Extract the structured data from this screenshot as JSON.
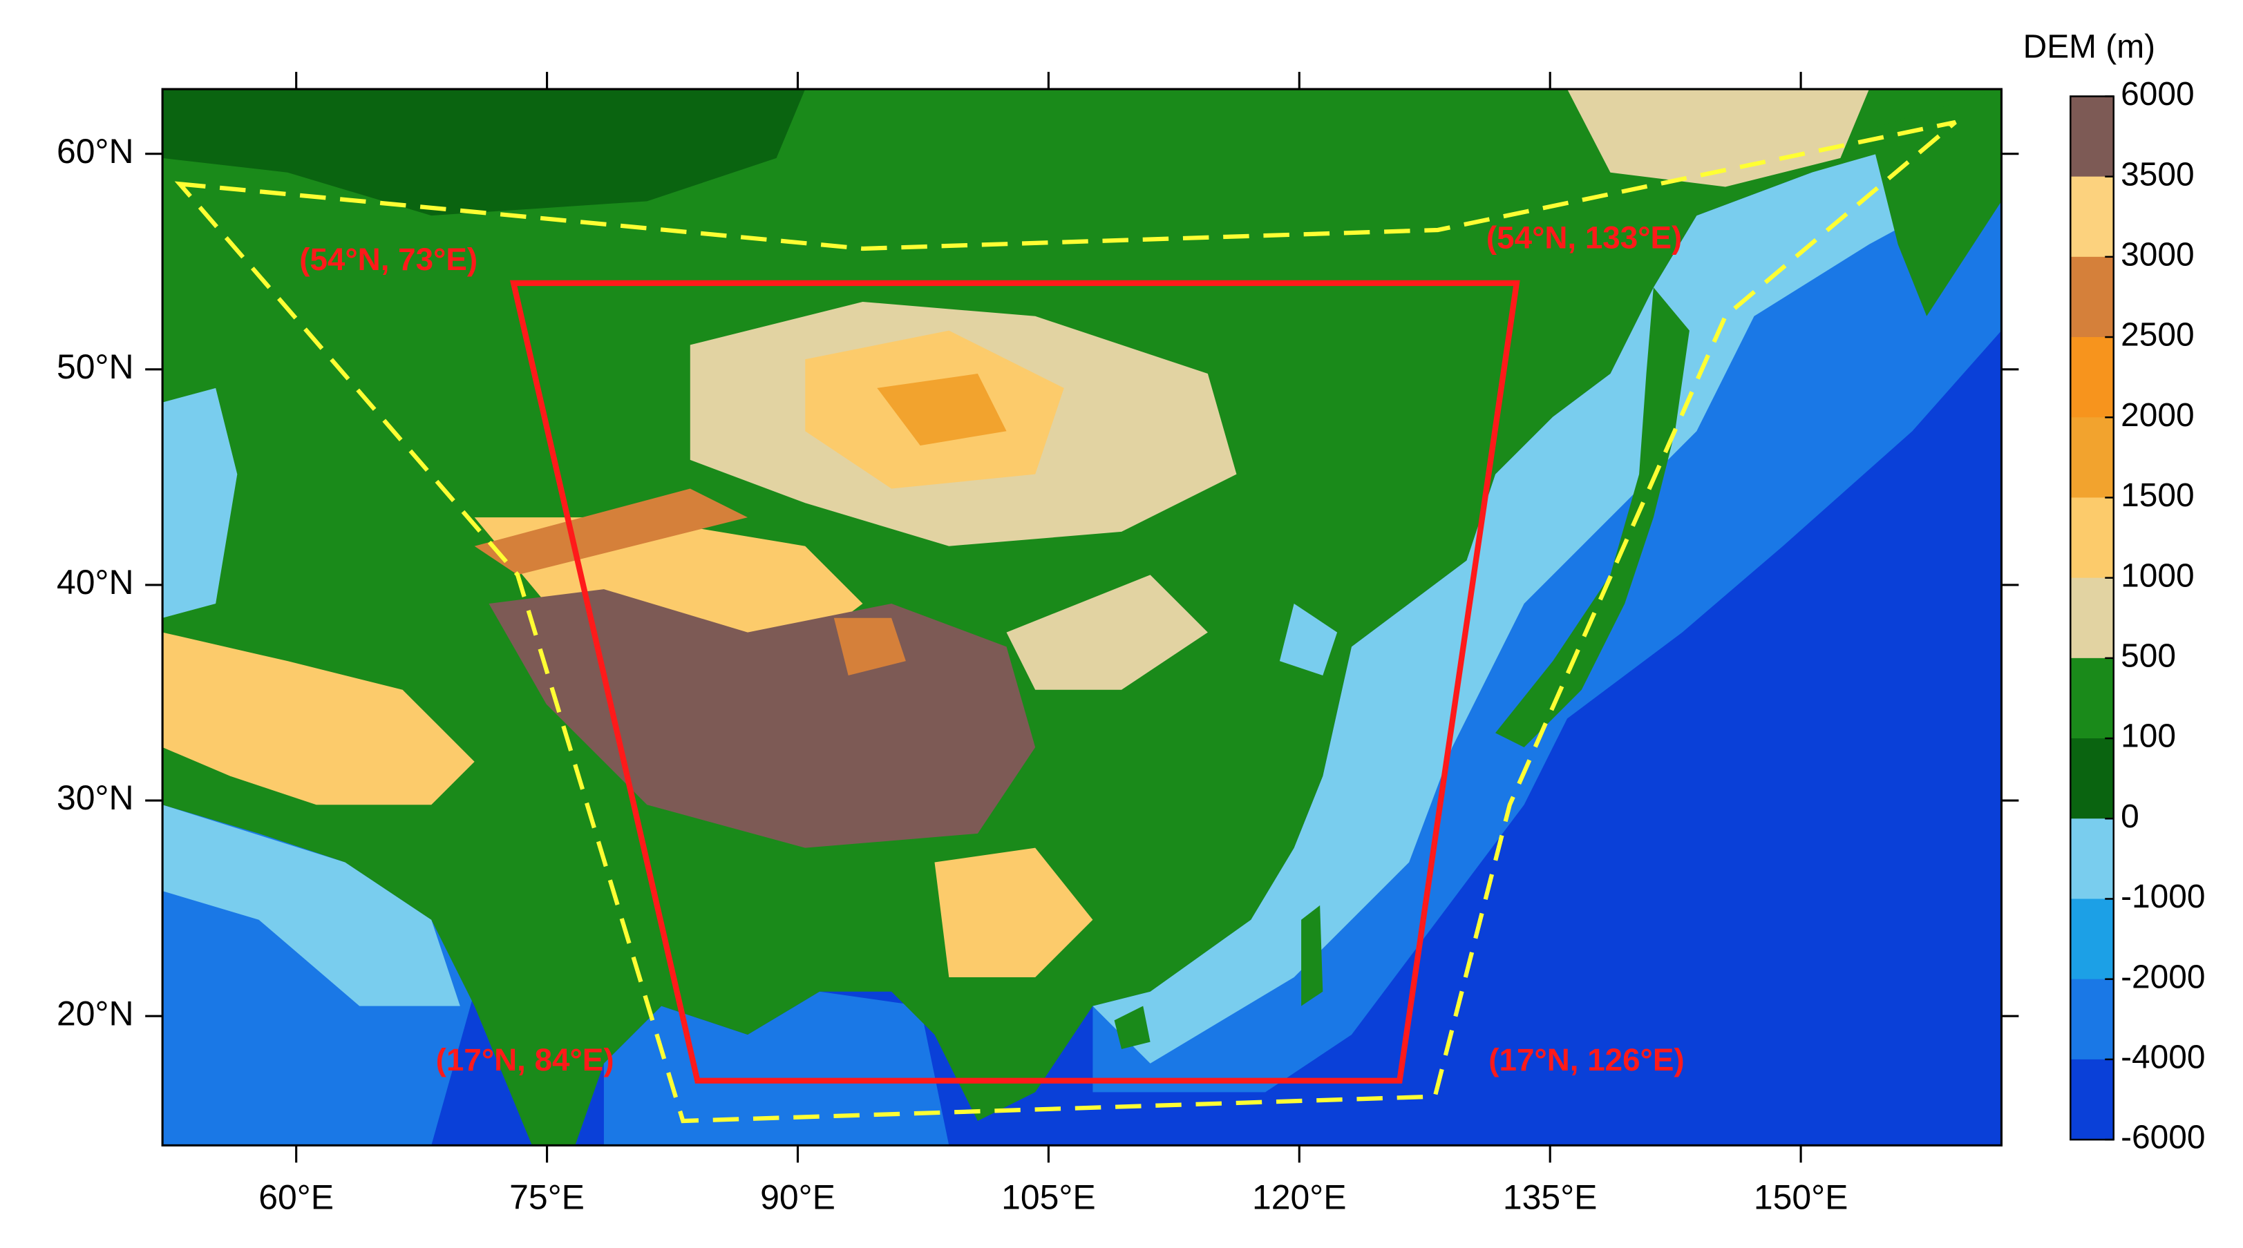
{
  "chart_data": {
    "type": "map",
    "xlim": [
      52,
      162
    ],
    "ylim": [
      14,
      63
    ],
    "xticks": [
      {
        "value": 60,
        "label": "60°E"
      },
      {
        "value": 75,
        "label": "75°E"
      },
      {
        "value": 90,
        "label": "90°E"
      },
      {
        "value": 105,
        "label": "105°E"
      },
      {
        "value": 120,
        "label": "120°E"
      },
      {
        "value": 135,
        "label": "135°E"
      },
      {
        "value": 150,
        "label": "150°E"
      }
    ],
    "yticks": [
      {
        "value": 20,
        "label": "20°N"
      },
      {
        "value": 30,
        "label": "30°N"
      },
      {
        "value": 40,
        "label": "40°N"
      },
      {
        "value": 50,
        "label": "50°N"
      },
      {
        "value": 60,
        "label": "60°N"
      }
    ],
    "domain_box": {
      "color": "#ff1a1a",
      "corners": [
        {
          "lat": 54,
          "lon": 73,
          "label": "(54°N, 73°E)"
        },
        {
          "lat": 54,
          "lon": 133,
          "label": "(54°N, 133°E)"
        },
        {
          "lat": 17,
          "lon": 126,
          "label": "(17°N, 126°E)"
        },
        {
          "lat": 17,
          "lon": 84,
          "label": "(17°N, 84°E)"
        }
      ]
    },
    "colorbar": {
      "title": "DEM (m)",
      "ticks": [
        6000,
        3500,
        3000,
        2500,
        2000,
        1500,
        1000,
        500,
        100,
        0,
        -1000,
        -2000,
        -4000,
        -6000
      ],
      "colors": [
        "#7d5a55",
        "#fcd27e",
        "#d5803a",
        "#f7941d",
        "#f2a32e",
        "#fccb6b",
        "#e2d3a2",
        "#1a8a1a",
        "#0a6410",
        "#79cdee",
        "#1ca0e6",
        "#1a78e6",
        "#0a40d8"
      ]
    }
  }
}
